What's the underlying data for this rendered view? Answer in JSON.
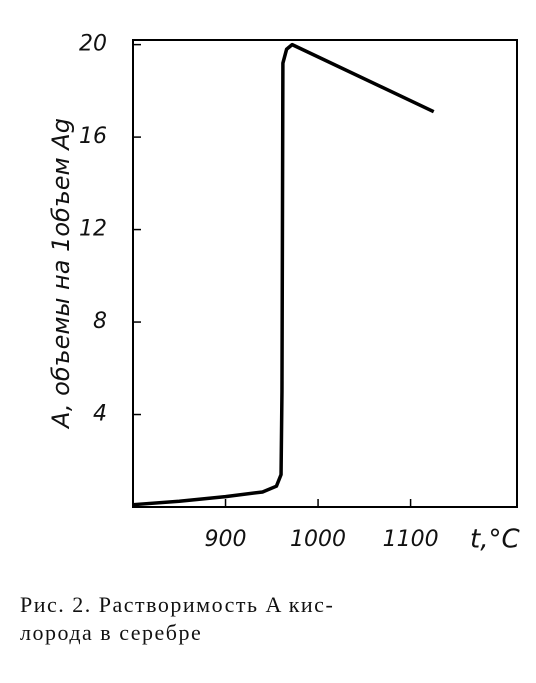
{
  "chart_data": {
    "type": "line",
    "x": [
      800,
      850,
      900,
      940,
      955,
      960,
      961,
      962,
      966,
      972,
      1125
    ],
    "values": [
      0.1,
      0.25,
      0.45,
      0.65,
      0.9,
      1.4,
      5,
      19.2,
      19.8,
      20.0,
      17.1
    ],
    "color": "#000000",
    "xlim": [
      800,
      1215
    ],
    "ylim": [
      0,
      20.2
    ],
    "xticks": [
      900,
      1000,
      1100
    ],
    "yticks": [
      4,
      8,
      12,
      16,
      20
    ],
    "xlabel": "t,°C",
    "ylabel": "A, объемы на 1объем Ag",
    "caption": [
      "Рис. 2. Растворимость A кис-",
      "лорода в серебре"
    ]
  }
}
